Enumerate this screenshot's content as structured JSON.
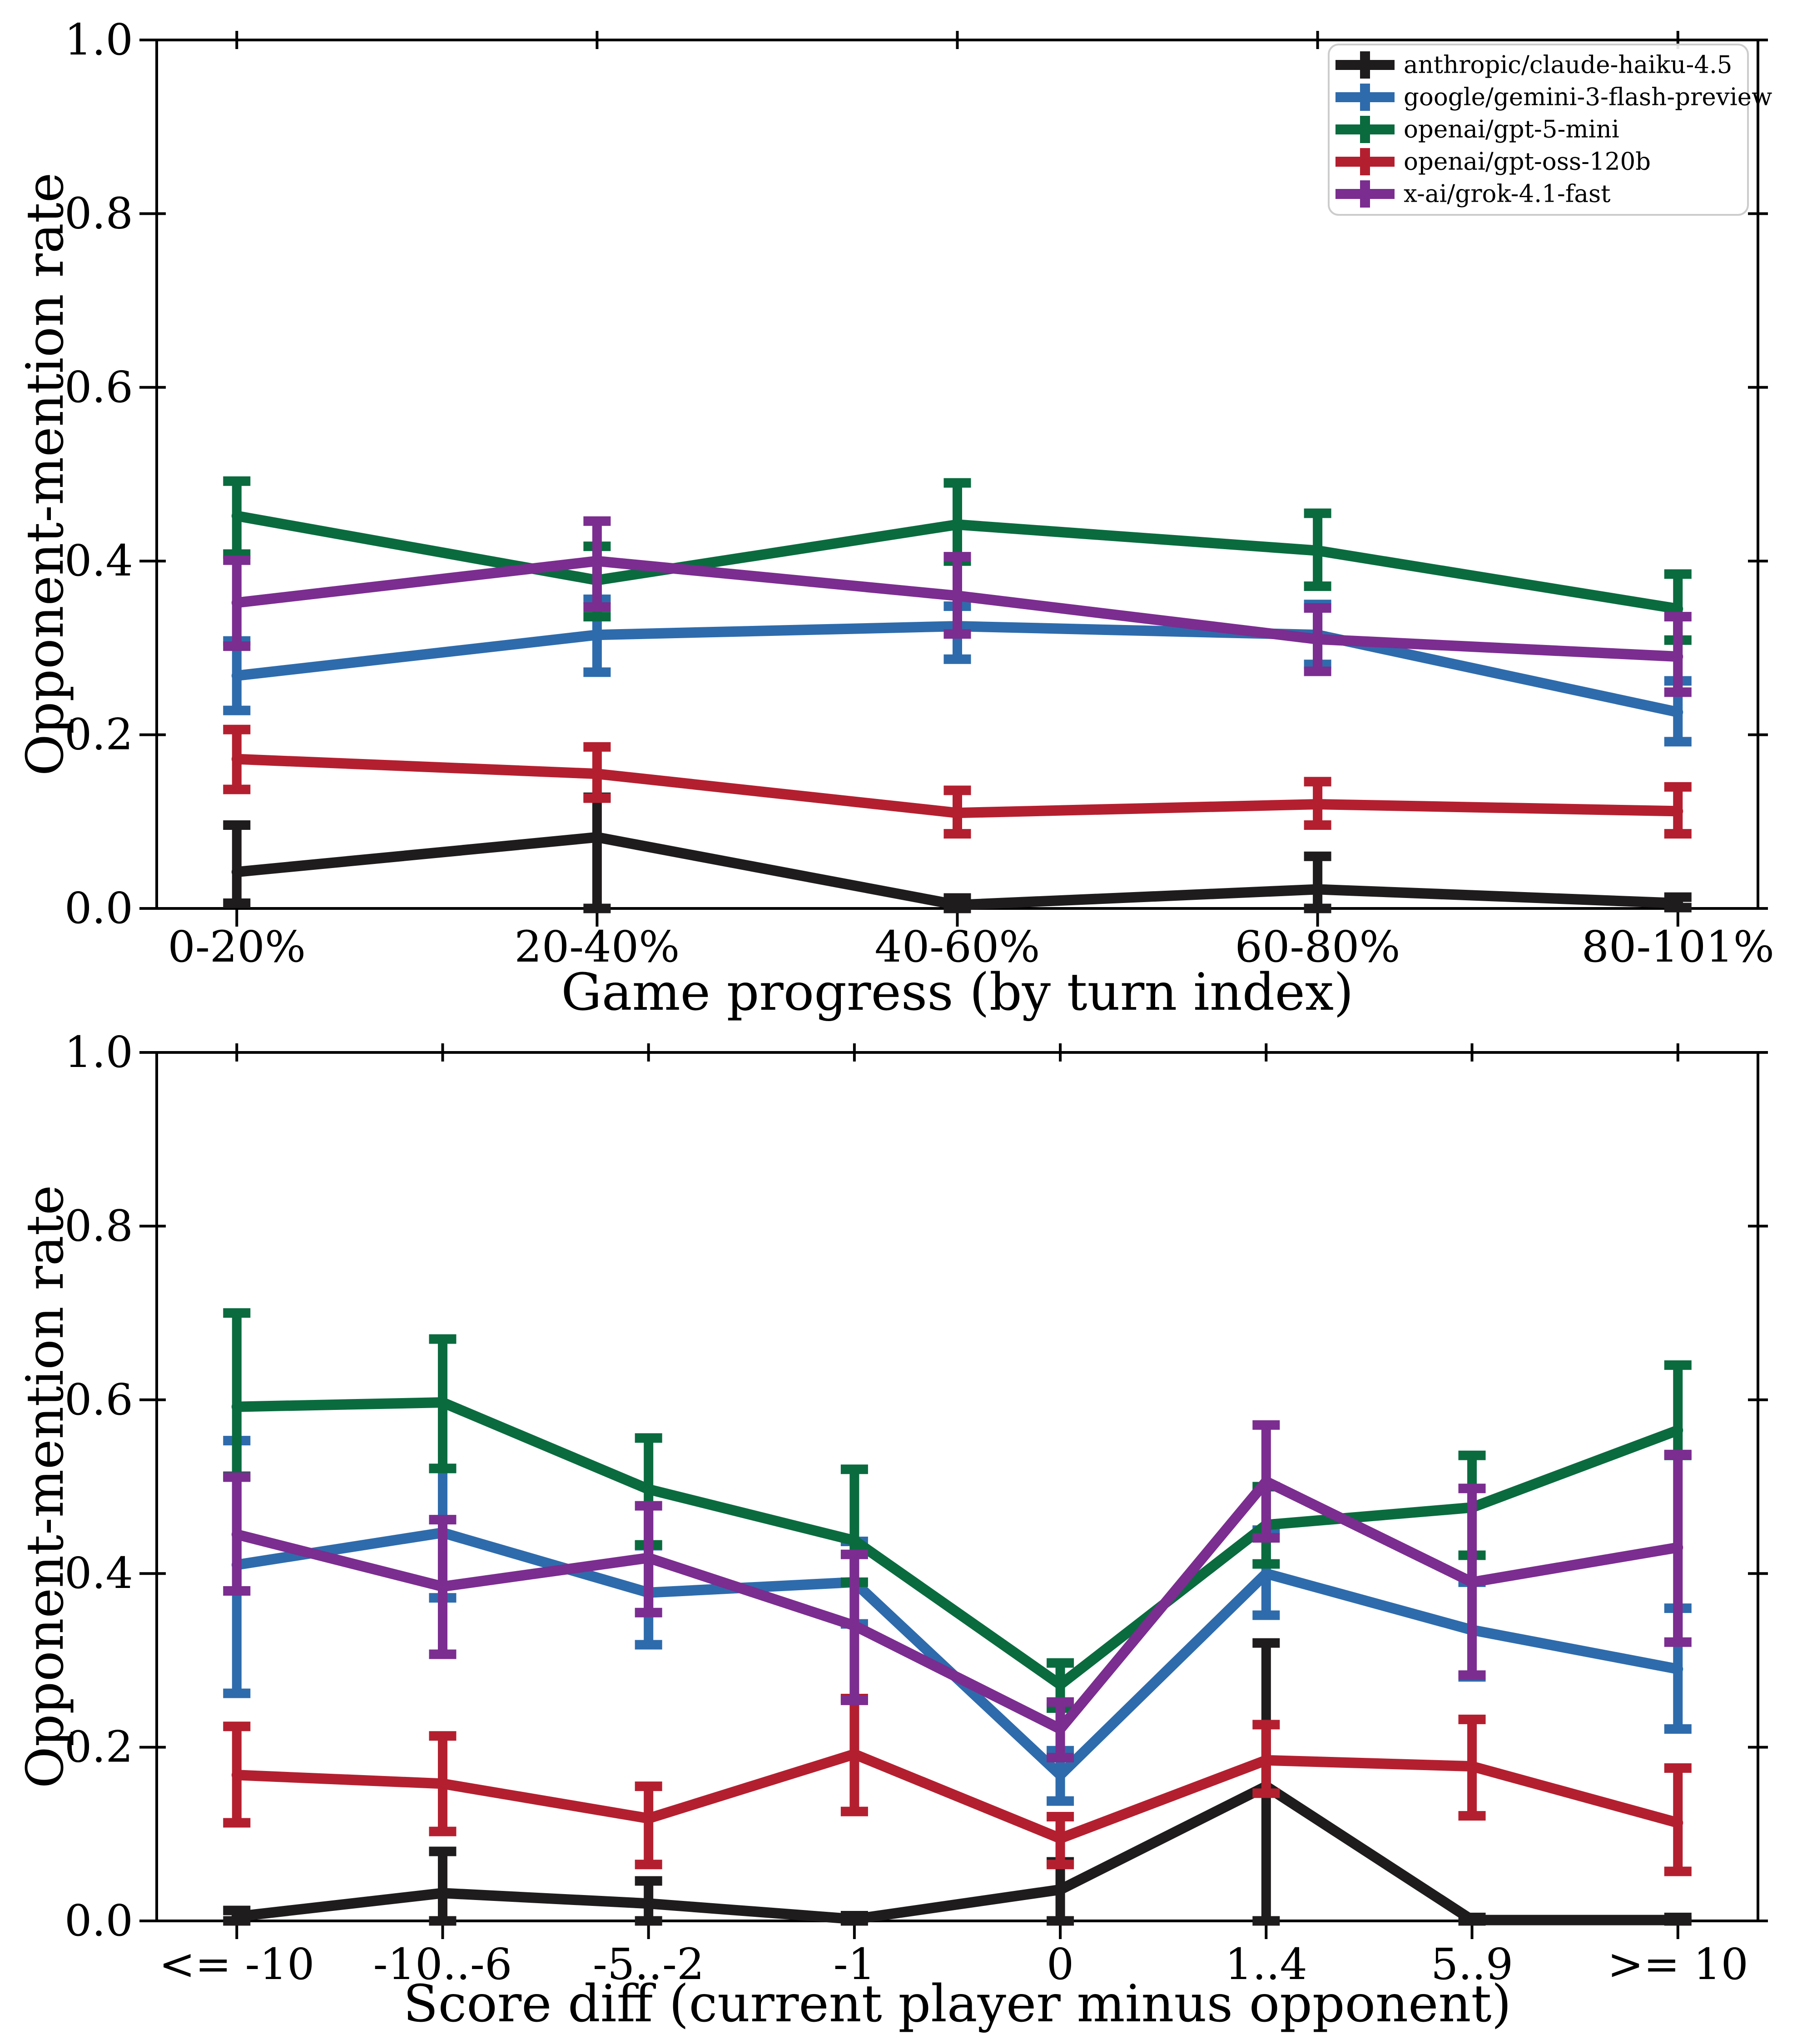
{
  "figure": {
    "background": "#ffffff",
    "axis_color": "#000000",
    "legend_border_color": "#cccccc",
    "legend_background": "#ffffff"
  },
  "chart_data": [
    {
      "type": "line",
      "title": "",
      "xlabel": "Game progress (by turn index)",
      "ylabel": "Opponent-mention rate",
      "categories": [
        "0-20%",
        "20-40%",
        "40-60%",
        "60-80%",
        "80-101%"
      ],
      "ylim": [
        0.0,
        1.0
      ],
      "yticks": [
        0.0,
        0.2,
        0.4,
        0.6,
        0.8,
        1.0
      ],
      "grid": false,
      "legend": true,
      "legend_position": "upper right",
      "series": [
        {
          "name": "anthropic/claude-haiku-4.5",
          "color": "#1f1c1d",
          "values": [
            0.042,
            0.082,
            0.004,
            0.022,
            0.006
          ],
          "err_low": [
            0.006,
            0.0,
            0.0,
            0.0,
            0.001
          ],
          "err_high": [
            0.096,
            0.128,
            0.012,
            0.06,
            0.013
          ]
        },
        {
          "name": "google/gemini-3-flash-preview",
          "color": "#2e6bac",
          "values": [
            0.268,
            0.315,
            0.325,
            0.315,
            0.226
          ],
          "err_low": [
            0.228,
            0.272,
            0.287,
            0.281,
            0.192
          ],
          "err_high": [
            0.308,
            0.356,
            0.348,
            0.35,
            0.262
          ]
        },
        {
          "name": "openai/gpt-5-mini",
          "color": "#0a6b3f",
          "values": [
            0.452,
            0.378,
            0.442,
            0.412,
            0.345
          ],
          "err_low": [
            0.408,
            0.336,
            0.4,
            0.371,
            0.309
          ],
          "err_high": [
            0.492,
            0.417,
            0.49,
            0.455,
            0.385
          ]
        },
        {
          "name": "openai/gpt-oss-120b",
          "color": "#b41f2f",
          "values": [
            0.172,
            0.155,
            0.11,
            0.12,
            0.112
          ],
          "err_low": [
            0.137,
            0.127,
            0.086,
            0.096,
            0.086
          ],
          "err_high": [
            0.206,
            0.186,
            0.136,
            0.146,
            0.14
          ]
        },
        {
          "name": "x-ai/grok-4.1-fast",
          "color": "#7b2d90",
          "values": [
            0.352,
            0.4,
            0.36,
            0.31,
            0.29
          ],
          "err_low": [
            0.302,
            0.347,
            0.316,
            0.273,
            0.249
          ],
          "err_high": [
            0.401,
            0.446,
            0.405,
            0.346,
            0.336
          ]
        }
      ]
    },
    {
      "type": "line",
      "title": "",
      "xlabel": "Score diff (current player minus opponent)",
      "ylabel": "Opponent-mention rate",
      "categories": [
        "<= -10",
        "-10..-6",
        "-5..-2",
        "-1",
        "0",
        "1..4",
        "5..9",
        ">= 10"
      ],
      "ylim": [
        0.0,
        1.0
      ],
      "yticks": [
        0.0,
        0.2,
        0.4,
        0.6,
        0.8,
        1.0
      ],
      "grid": false,
      "legend": false,
      "legend_position": null,
      "series": [
        {
          "name": "anthropic/claude-haiku-4.5",
          "color": "#1f1c1d",
          "values": [
            0.005,
            0.032,
            0.02,
            0.002,
            0.036,
            0.155,
            0.001,
            0.001
          ],
          "err_low": [
            0.0,
            0.0,
            0.0,
            0.0,
            0.0,
            0.0,
            0.0,
            0.0
          ],
          "err_high": [
            0.012,
            0.08,
            0.046,
            0.006,
            0.068,
            0.32,
            0.004,
            0.004
          ]
        },
        {
          "name": "google/gemini-3-flash-preview",
          "color": "#2e6bac",
          "values": [
            0.41,
            0.447,
            0.378,
            0.39,
            0.168,
            0.4,
            0.335,
            0.29
          ],
          "err_low": [
            0.262,
            0.372,
            0.318,
            0.342,
            0.138,
            0.352,
            0.281,
            0.221
          ],
          "err_high": [
            0.553,
            0.521,
            0.432,
            0.437,
            0.196,
            0.45,
            0.39,
            0.36
          ]
        },
        {
          "name": "openai/gpt-5-mini",
          "color": "#0a6b3f",
          "values": [
            0.592,
            0.597,
            0.497,
            0.438,
            0.272,
            0.456,
            0.476,
            0.565
          ],
          "err_low": [
            0.512,
            0.521,
            0.433,
            0.39,
            0.245,
            0.411,
            0.421,
            0.536
          ],
          "err_high": [
            0.7,
            0.67,
            0.556,
            0.52,
            0.297,
            0.5,
            0.536,
            0.64
          ]
        },
        {
          "name": "openai/gpt-oss-120b",
          "color": "#b41f2f",
          "values": [
            0.168,
            0.158,
            0.118,
            0.192,
            0.095,
            0.185,
            0.178,
            0.113
          ],
          "err_low": [
            0.113,
            0.103,
            0.065,
            0.126,
            0.065,
            0.147,
            0.121,
            0.057
          ],
          "err_high": [
            0.224,
            0.213,
            0.155,
            0.256,
            0.12,
            0.226,
            0.232,
            0.176
          ]
        },
        {
          "name": "x-ai/grok-4.1-fast",
          "color": "#7b2d90",
          "values": [
            0.445,
            0.385,
            0.418,
            0.34,
            0.221,
            0.506,
            0.39,
            0.43
          ],
          "err_low": [
            0.38,
            0.307,
            0.355,
            0.254,
            0.188,
            0.441,
            0.283,
            0.321
          ],
          "err_high": [
            0.511,
            0.462,
            0.478,
            0.422,
            0.252,
            0.571,
            0.498,
            0.537
          ]
        }
      ]
    }
  ]
}
